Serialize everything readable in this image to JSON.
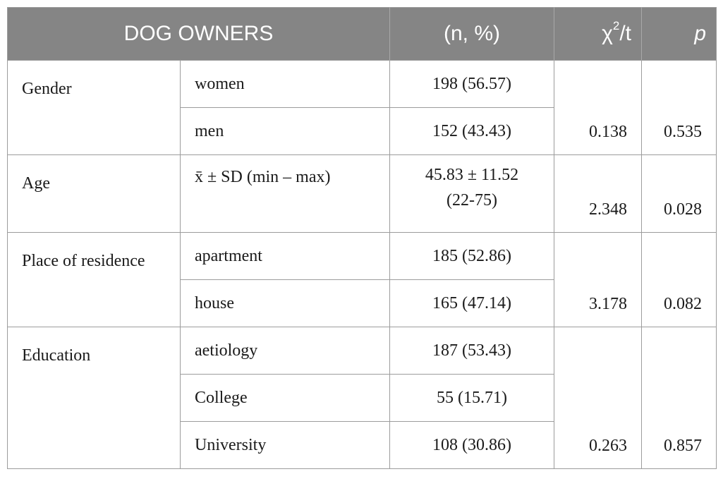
{
  "header": {
    "group": "DOG OWNERS",
    "n": "(n, %)",
    "chi_base": "χ",
    "chi_sup": "2",
    "chi_rest": "/t",
    "p": "p"
  },
  "rows": {
    "gender": {
      "label": "Gender",
      "women": "women",
      "women_val": "198 (56.57)",
      "men": "men",
      "men_val": "152 (43.43)",
      "stat": "0.138",
      "p": "0.535"
    },
    "age": {
      "label": "Age",
      "sub": "x̄ ± SD (min – max)",
      "val_line1": "45.83 ± 11.52",
      "val_line2": "(22-75)",
      "stat": "2.348",
      "p": "0.028"
    },
    "residence": {
      "label": "Place of residence",
      "apartment": "apartment",
      "apartment_val": "185 (52.86)",
      "house": "house",
      "house_val": "165 (47.14)",
      "stat": "3.178",
      "p": "0.082"
    },
    "education": {
      "label": "Education",
      "aetiology": "aetiology",
      "aetiology_val": "187 (53.43)",
      "college": "College",
      "college_val": "55 (15.71)",
      "university": "University",
      "university_val": "108 (30.86)",
      "stat": "0.263",
      "p": "0.857"
    }
  }
}
